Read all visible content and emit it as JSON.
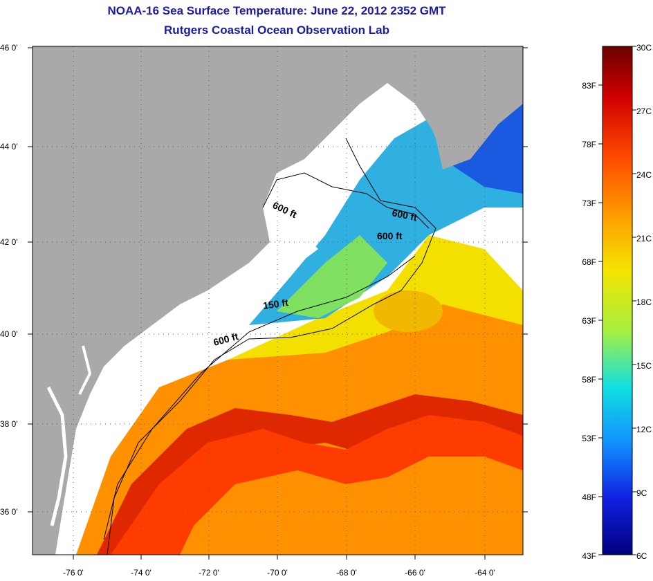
{
  "title": {
    "line1": "NOAA-16 Sea Surface Temperature:  June 22, 2012 2352 GMT",
    "line2": "Rutgers Coastal Ocean Observation Lab"
  },
  "axes": {
    "lat_labels": [
      "46 0'",
      "44 0'",
      "42 0'",
      "40 0'",
      "38 0'",
      "36 0'"
    ],
    "lon_labels": [
      "-76 0'",
      "-74 0'",
      "-72 0'",
      "-70 0'",
      "-68 0'",
      "-66 0'",
      "-64 0'"
    ]
  },
  "contour_labels": [
    "600 ft",
    "600 ft",
    "600 ft",
    "150 ft",
    "600 ft"
  ],
  "colorbar": {
    "celsius": [
      "30C",
      "27C",
      "24C",
      "21C",
      "18C",
      "15C",
      "12C",
      "9C",
      "6C"
    ],
    "fahrenheit": [
      "83F",
      "78F",
      "73F",
      "68F",
      "63F",
      "58F",
      "53F",
      "48F",
      "43F"
    ]
  },
  "colors": {
    "land": "#a9a9a9",
    "title": "#1a1aa6",
    "cloud": "#ffffff"
  }
}
